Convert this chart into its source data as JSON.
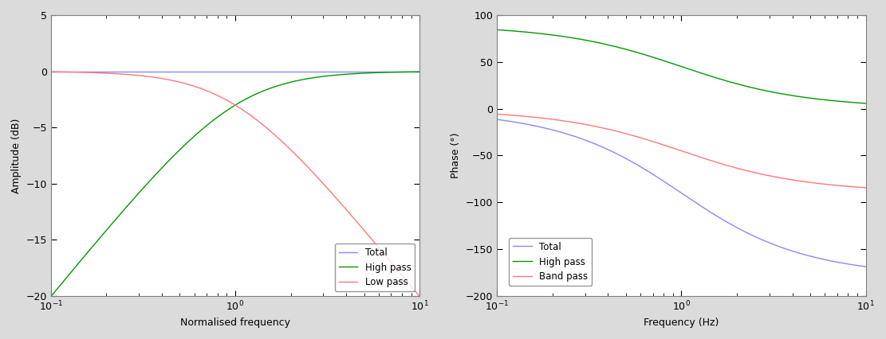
{
  "left": {
    "xlabel": "Normalised frequency",
    "ylabel": "Amplitude (dB)",
    "xlim": [
      0.1,
      10
    ],
    "ylim": [
      -20,
      5
    ],
    "yticks": [
      -20,
      -15,
      -10,
      -5,
      0,
      5
    ],
    "legend_labels": [
      "Total",
      "High pass",
      "Low pass"
    ],
    "line_colors": [
      "#8888ff",
      "#009900",
      "#ff7777"
    ],
    "crossover_freq": 1.0
  },
  "right": {
    "xlabel": "Frequency (Hz)",
    "ylabel": "Phase (°)",
    "xlim": [
      0.1,
      10
    ],
    "ylim": [
      -200,
      100
    ],
    "yticks": [
      -200,
      -150,
      -100,
      -50,
      0,
      50,
      100
    ],
    "legend_labels": [
      "Total",
      "High pass",
      "Band pass"
    ],
    "line_colors": [
      "#8888ff",
      "#009900",
      "#ff7777"
    ],
    "crossover_freq": 1.0
  },
  "figure_bg": "#dbdbdb",
  "axes_bg": "#ffffff",
  "spine_color": "#808080",
  "linewidth": 1.0
}
